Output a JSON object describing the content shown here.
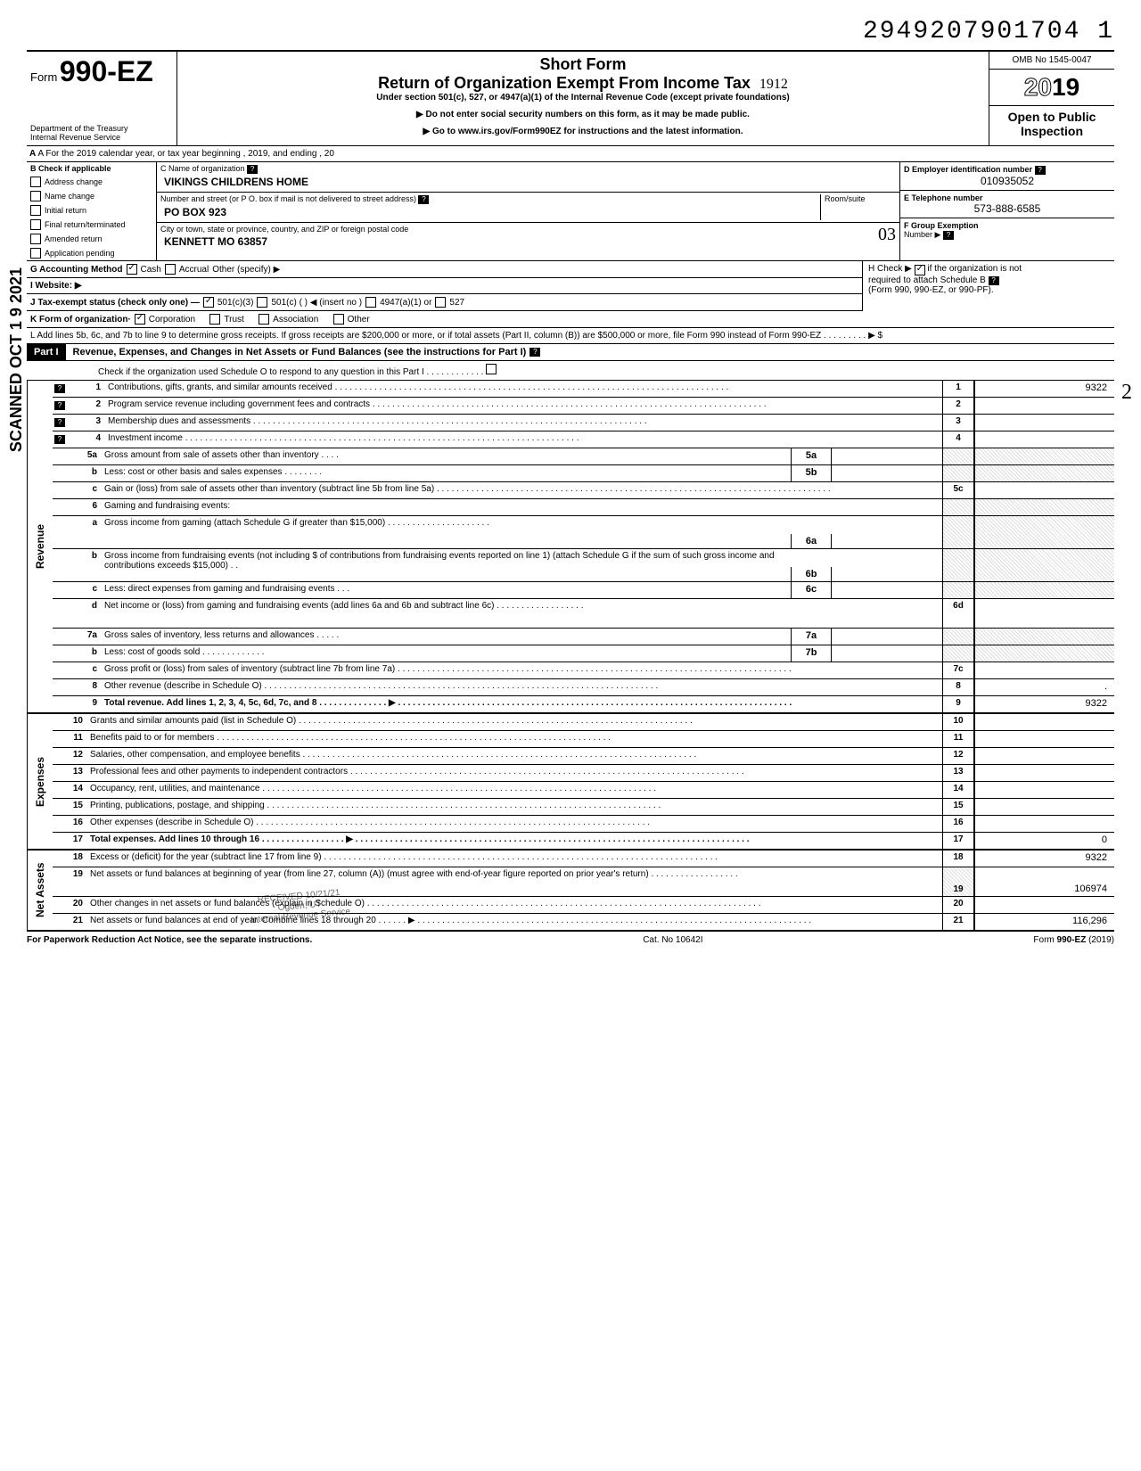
{
  "doc_id": "2949207901704  1",
  "form": {
    "prefix": "Form",
    "number": "990-EZ",
    "dept1": "Department of the Treasury",
    "dept2": "Internal Revenue Service"
  },
  "title": {
    "short": "Short Form",
    "main": "Return of Organization Exempt From Income Tax",
    "handwritten": "1912",
    "sub": "Under section 501(c), 527, or 4947(a)(1) of the Internal Revenue Code (except private foundations)",
    "inst1": "▶ Do not enter social security numbers on this form, as it may be made public.",
    "inst2": "▶ Go to www.irs.gov/Form990EZ for instructions and the latest information."
  },
  "right": {
    "omb": "OMB No 1545-0047",
    "year_prefix": "20",
    "year_suffix": "19",
    "open": "Open to Public",
    "inspection": "Inspection"
  },
  "section_a": "A  For the 2019 calendar year, or tax year beginning                                                                               , 2019, and ending                                                          , 20",
  "col_b": {
    "header": "B  Check if applicable",
    "items": [
      "Address change",
      "Name change",
      "Initial return",
      "Final return/terminated",
      "Amended return",
      "Application pending"
    ]
  },
  "col_c": {
    "name_label": "C  Name of organization",
    "name": "VIKINGS CHILDRENS HOME",
    "addr_label": "Number and street (or P O. box if mail is not delivered to street address)",
    "addr": "PO BOX 923",
    "room_label": "Room/suite",
    "city_label": "City or town, state or province, country, and ZIP or foreign postal code",
    "city": "KENNETT MO 63857",
    "handwritten_03": "03"
  },
  "col_right": {
    "d_label": "D Employer identification number",
    "d_value": "010935052",
    "e_label": "E  Telephone number",
    "e_value": "573-888-6585",
    "f_label": "F  Group Exemption",
    "f_label2": "Number  ▶"
  },
  "row_g": {
    "label": "G  Accounting Method",
    "opts": [
      "Cash",
      "Accrual"
    ],
    "other": "Other (specify) ▶"
  },
  "row_h": {
    "text": "H  Check ▶",
    "text2": "if the organization is not",
    "text3": "required to attach Schedule B",
    "text4": "(Form 990, 990-EZ, or 990-PF)."
  },
  "row_i": "I   Website: ▶",
  "row_j": {
    "label": "J  Tax-exempt status (check only one) —",
    "opts": [
      "501(c)(3)",
      "501(c) (          ) ◀ (insert no )",
      "4947(a)(1) or",
      "527"
    ]
  },
  "row_k": {
    "label": "K  Form of organization·",
    "opts": [
      "Corporation",
      "Trust",
      "Association",
      "Other"
    ]
  },
  "row_l": "L  Add lines 5b, 6c, and 7b to line 9 to determine gross receipts. If gross receipts are $200,000 or more, or if total assets (Part II, column (B)) are $500,000 or more, file Form 990 instead of Form 990-EZ    .    .    .    .    .    .    .    .    .    ▶      $",
  "part1": {
    "label": "Part I",
    "title": "Revenue, Expenses, and Changes in Net Assets or Fund Balances (see the instructions for Part I)",
    "check": "Check if the organization used Schedule O to respond to any question in this Part I  .   .   .   .   .   .   .   .   .   .   .   ."
  },
  "sections": {
    "revenue": "Revenue",
    "expenses": "Expenses",
    "netassets": "Net Assets"
  },
  "lines": [
    {
      "n": "1",
      "d": "Contributions, gifts, grants, and similar amounts received",
      "box": "1",
      "amt": "9322",
      "hw": "2"
    },
    {
      "n": "2",
      "d": "Program service revenue including government fees and contracts",
      "box": "2",
      "amt": ""
    },
    {
      "n": "3",
      "d": "Membership dues and assessments",
      "box": "3",
      "amt": ""
    },
    {
      "n": "4",
      "d": "Investment income",
      "box": "4",
      "amt": ""
    },
    {
      "n": "5a",
      "d": "Gross amount from sale of assets other than inventory    .    .    .    .",
      "ibox": "5a",
      "shaded": true
    },
    {
      "n": "b",
      "d": "Less: cost or other basis and sales expenses .    .    .    .    .    .    .    .",
      "ibox": "5b",
      "shaded": true
    },
    {
      "n": "c",
      "d": "Gain or (loss) from sale of assets other than inventory (subtract line 5b from line 5a)",
      "box": "5c",
      "amt": ""
    },
    {
      "n": "6",
      "d": "Gaming and fundraising events:",
      "shaded_full": true
    },
    {
      "n": "a",
      "d": "Gross income from gaming (attach Schedule G if greater than $15,000) .   .   .   .   .   .   .   .   .   .   .   .   .   .   .   .   .   .   .   .   .",
      "ibox": "6a",
      "shaded": true,
      "multi": true
    },
    {
      "n": "b",
      "d": "Gross income from fundraising events (not including  $                             of contributions from fundraising events reported on line 1) (attach Schedule G if the sum of such gross income and contributions exceeds $15,000) .   .",
      "ibox": "6b",
      "shaded": true,
      "multi": true
    },
    {
      "n": "c",
      "d": "Less: direct expenses from gaming and fundraising events     .    .    .",
      "ibox": "6c",
      "shaded": true
    },
    {
      "n": "d",
      "d": "Net income or (loss) from gaming and fundraising events (add lines 6a and 6b and subtract line 6c)",
      "box": "6d",
      "amt": "",
      "multi": true
    },
    {
      "n": "7a",
      "d": "Gross sales of inventory, less returns and allowances   .    .    .    .    .",
      "ibox": "7a",
      "shaded": true
    },
    {
      "n": "b",
      "d": "Less: cost of goods sold        .    .    .    .    .    .    .    .    .    .    .    .    .",
      "ibox": "7b",
      "shaded": true
    },
    {
      "n": "c",
      "d": "Gross profit or (loss) from sales of inventory (subtract line 7b from line 7a)",
      "box": "7c",
      "amt": ""
    },
    {
      "n": "8",
      "d": "Other revenue (describe in Schedule O)",
      "box": "8",
      "amt": "."
    },
    {
      "n": "9",
      "d": "Total revenue. Add lines 1, 2, 3, 4, 5c, 6d, 7c, and 8    .    .    .    .    .    .    .    .    .    .    .    .    .    .  ▶",
      "box": "9",
      "amt": "9322",
      "bold": true
    }
  ],
  "exp_lines": [
    {
      "n": "10",
      "d": "Grants and similar amounts paid (list in Schedule O)",
      "box": "10",
      "amt": ""
    },
    {
      "n": "11",
      "d": "Benefits paid to or for members",
      "box": "11",
      "amt": ""
    },
    {
      "n": "12",
      "d": "Salaries, other compensation, and employee benefits",
      "box": "12",
      "amt": ""
    },
    {
      "n": "13",
      "d": "Professional fees and other payments to independent contractors",
      "box": "13",
      "amt": ""
    },
    {
      "n": "14",
      "d": "Occupancy, rent, utilities, and maintenance",
      "box": "14",
      "amt": ""
    },
    {
      "n": "15",
      "d": "Printing, publications, postage, and shipping",
      "box": "15",
      "amt": ""
    },
    {
      "n": "16",
      "d": "Other expenses (describe in Schedule O)",
      "box": "16",
      "amt": ""
    },
    {
      "n": "17",
      "d": "Total expenses. Add lines 10 through 16   .    .    .    .    .    .    .    .    .    .    .    .    .    .    .    .    .  ▶",
      "box": "17",
      "amt": "0",
      "bold": true
    }
  ],
  "na_lines": [
    {
      "n": "18",
      "d": "Excess or (deficit) for the year (subtract line 17 from line 9)",
      "box": "18",
      "amt": "9322"
    },
    {
      "n": "19",
      "d": "Net assets or fund balances at beginning of year (from line 27, column (A)) (must agree with end-of-year figure reported on prior year's return)",
      "box": "19",
      "amt": "106974",
      "multi": true,
      "shaded_box": true
    },
    {
      "n": "20",
      "d": "Other changes in net assets or fund balances (explain in Schedule O)",
      "box": "20",
      "amt": ""
    },
    {
      "n": "21",
      "d": "Net assets or fund balances at end of year. Combine lines 18 through 20    .    .    .    .    .    .   ▶",
      "box": "21",
      "amt": "116,296"
    }
  ],
  "footer": {
    "left": "For Paperwork Reduction Act Notice, see the separate instructions.",
    "mid": "Cat. No 10642I",
    "right_prefix": "Form ",
    "right_form": "990-EZ",
    "right_year": " (2019)"
  },
  "stamps": {
    "scanned": "SCANNED OCT 1 9 2021",
    "received1": "RECEIVED 10/21/21",
    "received2": "Ogden, UT",
    "received3": "Internal Revenue Service"
  }
}
